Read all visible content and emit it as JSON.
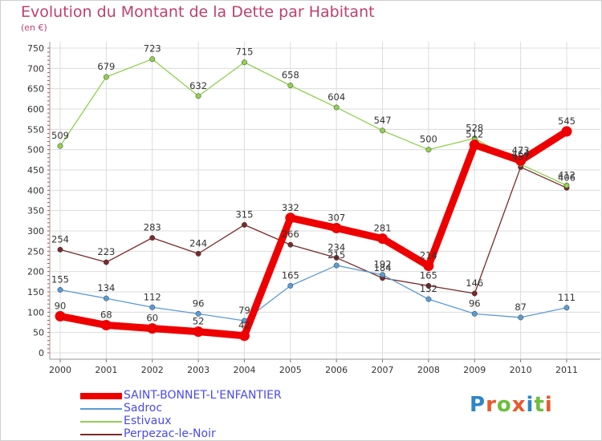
{
  "page": {
    "title": "Evolution du Montant de la Dette par Habitant",
    "subtitle": "(en €)"
  },
  "logo": {
    "text": "Proxiti",
    "colors": [
      "#2e86c8",
      "#e85a2a",
      "#6bbf3a",
      "#e85a2a",
      "#2e86c8",
      "#6bbf3a",
      "#e85a2a"
    ]
  },
  "chart_data": {
    "type": "line",
    "categories": [
      "2000",
      "2001",
      "2002",
      "2003",
      "2004",
      "2005",
      "2006",
      "2007",
      "2008",
      "2009",
      "2010",
      "2011"
    ],
    "ylim": [
      0,
      750
    ],
    "yticks": [
      0,
      50,
      100,
      150,
      200,
      250,
      300,
      350,
      400,
      450,
      500,
      550,
      600,
      650,
      700,
      750
    ],
    "grid": true,
    "legend_position": "bottom-left",
    "series": [
      {
        "name": "SAINT-BONNET-L'ENFANTIER",
        "color": "#ee0000",
        "values": [
          90,
          68,
          60,
          52,
          42,
          332,
          307,
          281,
          214,
          512,
          473,
          545
        ],
        "labels": [
          "90",
          "68",
          "60",
          "52",
          "42",
          "332",
          "307",
          "281",
          "214",
          "512",
          "473",
          "545"
        ]
      },
      {
        "name": "Sadroc",
        "color": "#5a9bd4",
        "values": [
          155,
          134,
          112,
          96,
          79,
          165,
          215,
          192,
          132,
          96,
          87,
          111
        ],
        "labels": [
          "155",
          "134",
          "112",
          "96",
          "79",
          "165",
          "215",
          "192",
          "132",
          "96",
          "87",
          "111"
        ]
      },
      {
        "name": "Estivaux",
        "color": "#8fd14f",
        "values": [
          509,
          679,
          723,
          632,
          715,
          658,
          604,
          547,
          500,
          528,
          464,
          412
        ],
        "labels": [
          "509",
          "679",
          "723",
          "632",
          "715",
          "658",
          "604",
          "547",
          "500",
          "528",
          "464",
          "412"
        ]
      },
      {
        "name": "Perpezac-le-Noir",
        "color": "#7a2a2a",
        "values": [
          254,
          223,
          283,
          244,
          315,
          266,
          234,
          184,
          165,
          146,
          457,
          406
        ],
        "labels": [
          "254",
          "223",
          "283",
          "244",
          "315",
          "266",
          "234",
          "184",
          "165",
          "146",
          "457",
          "406"
        ]
      }
    ]
  }
}
